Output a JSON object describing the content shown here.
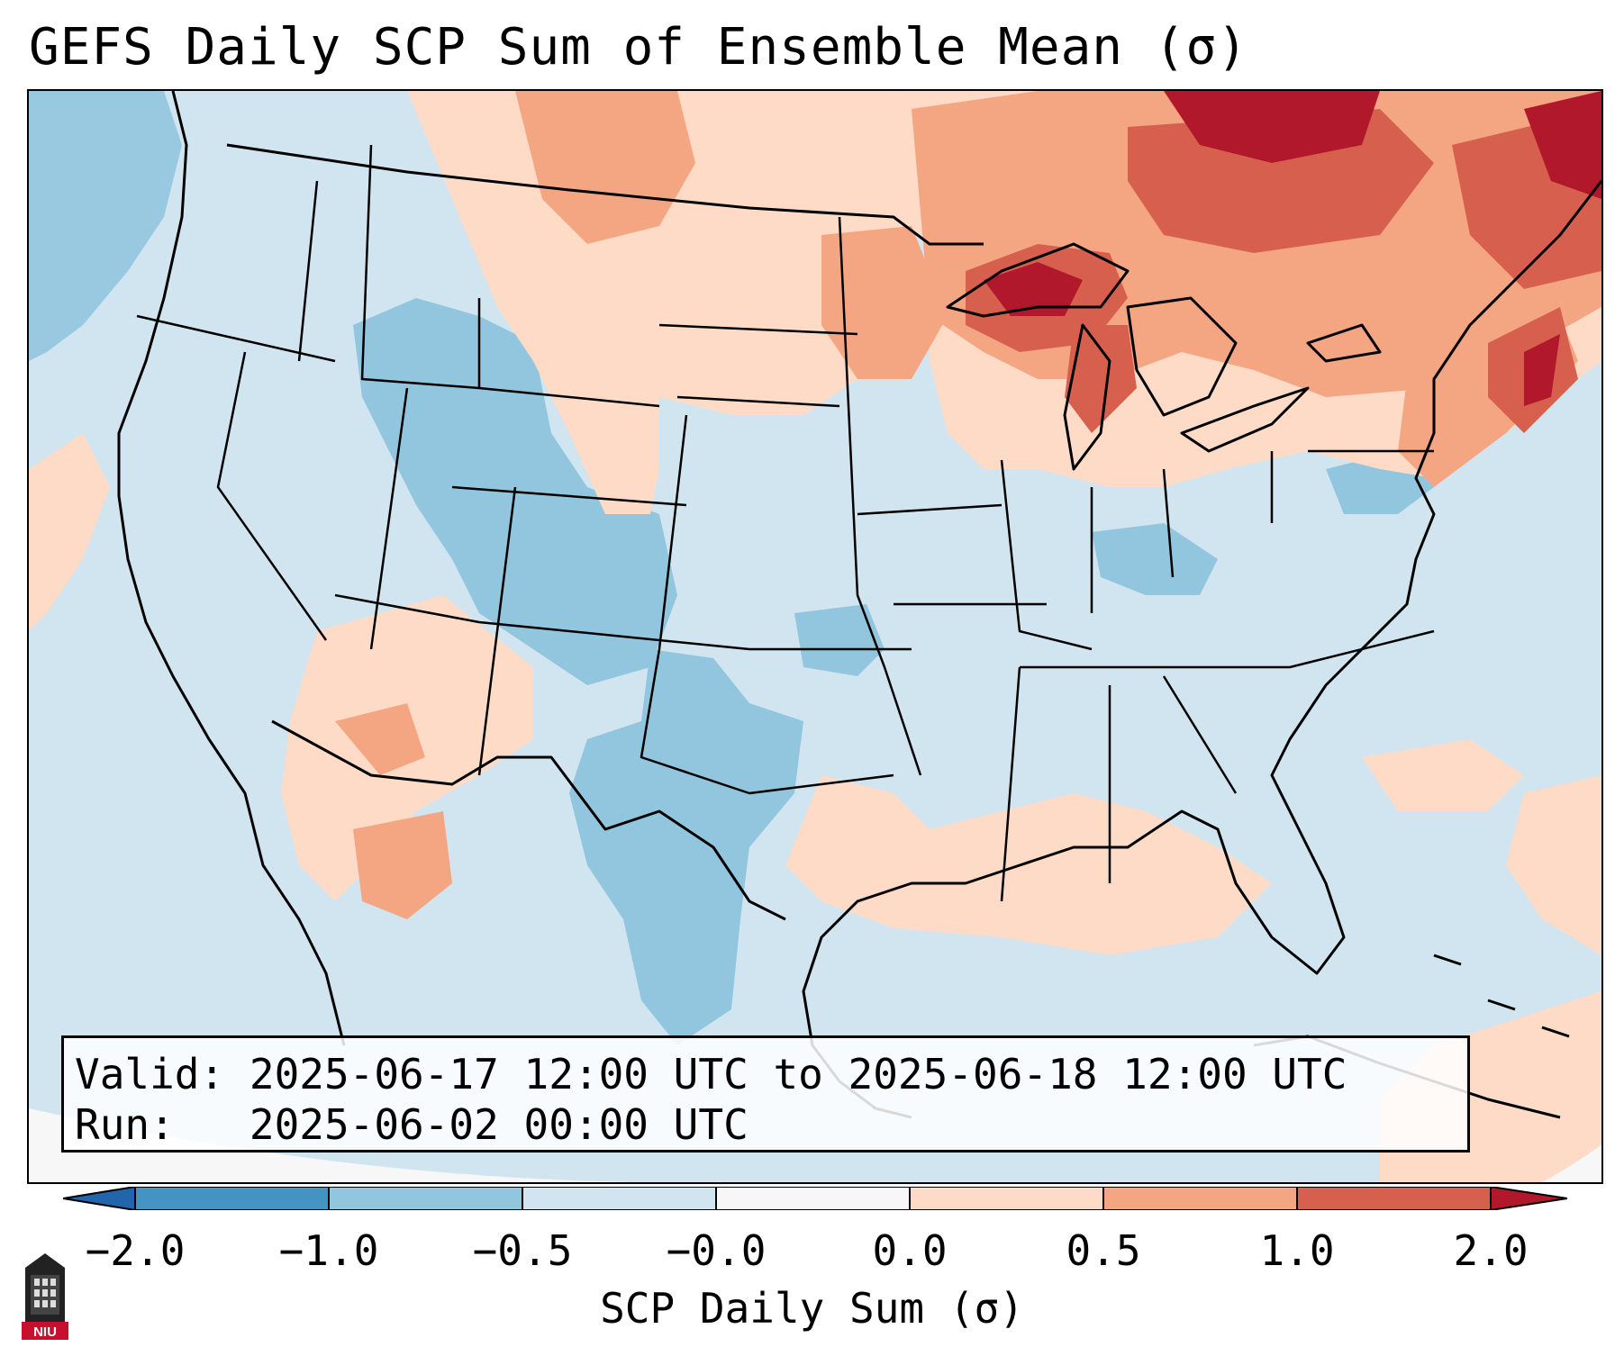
{
  "title": "GEFS Daily SCP Sum of Ensemble Mean (σ)",
  "info": {
    "valid_label": "Valid:",
    "valid_range": "2025-06-17 12:00 UTC to 2025-06-18 12:00 UTC",
    "run_label": "Run:",
    "run_time": "2025-06-02 00:00 UTC"
  },
  "colorbar": {
    "label": "SCP Daily Sum (σ)",
    "ticks": [
      "−2.0",
      "−1.0",
      "−0.5",
      "−0.0",
      "0.0",
      "0.5",
      "1.0",
      "2.0"
    ],
    "colors": {
      "below": "#2166ac",
      "bins": [
        "#4393c3",
        "#92c5de",
        "#d1e5f0",
        "#f7f7f7",
        "#fddbc7",
        "#f4a582",
        "#d6604d"
      ],
      "above": "#b2182b"
    }
  },
  "logo": {
    "text": "NIU",
    "icon": "university-tower-icon"
  },
  "map_fields": [
    {
      "name": "pacific-northwest-offshore",
      "level": "-1.0 to -0.5"
    },
    {
      "name": "great-basin-rockies",
      "level": "-1.0 to -0.5"
    },
    {
      "name": "southern-plains-texas",
      "level": "-1.0 to -0.5"
    },
    {
      "name": "northern-plains",
      "level": "0.0 to 0.5"
    },
    {
      "name": "great-lakes-canada",
      "level": "1.0 to 2.0"
    },
    {
      "name": "new-england",
      "level": "1.0 to 2.0"
    },
    {
      "name": "gulf-of-mexico",
      "level": "0.0 to 0.5"
    },
    {
      "name": "southwest-mexico",
      "level": "0.0 to 1.0"
    }
  ]
}
